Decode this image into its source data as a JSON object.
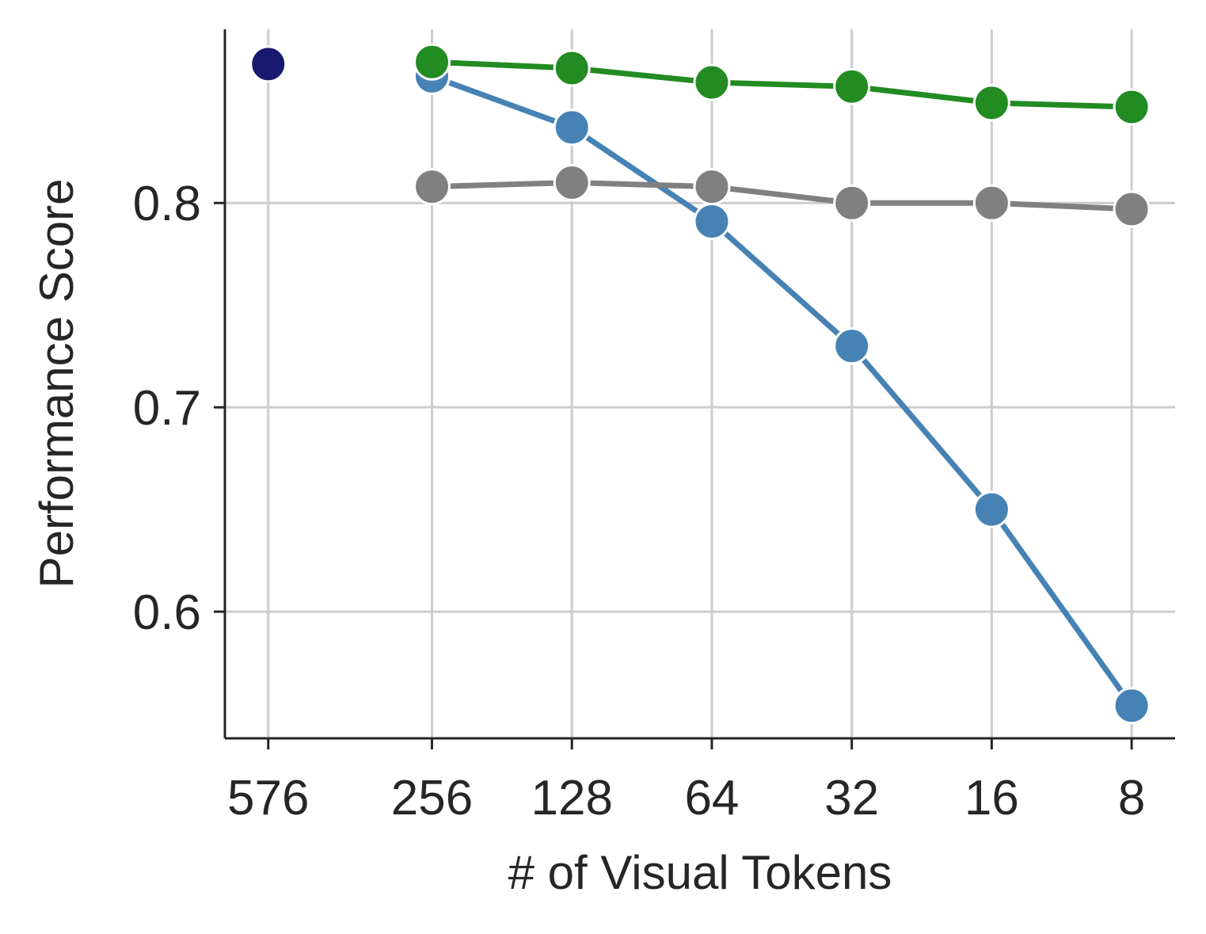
{
  "chart_data": {
    "type": "line",
    "x_label": "# of Visual Tokens",
    "y_label": "Performance Score",
    "x": [
      576,
      256,
      128,
      64,
      32,
      16,
      8
    ],
    "xscale": "log",
    "xlim": [
      714,
      6.45
    ],
    "xticks": [
      576,
      256,
      128,
      64,
      32,
      16,
      8
    ],
    "ylim": [
      0.538,
      0.885
    ],
    "yticks": [
      0.6,
      0.7,
      0.8
    ],
    "grid": true,
    "series": [
      {
        "color": "#191970",
        "values": [
          0.868,
          null,
          null,
          null,
          null,
          null,
          null
        ]
      },
      {
        "color": "#4682b4",
        "values": [
          null,
          0.862,
          0.837,
          0.791,
          0.73,
          0.65,
          0.554
        ]
      },
      {
        "color": "#808080",
        "values": [
          null,
          0.808,
          0.81,
          0.808,
          0.8,
          0.8,
          0.797
        ]
      },
      {
        "color": "#228b22",
        "values": [
          null,
          0.869,
          0.866,
          0.859,
          0.857,
          0.849,
          0.847
        ]
      }
    ]
  }
}
